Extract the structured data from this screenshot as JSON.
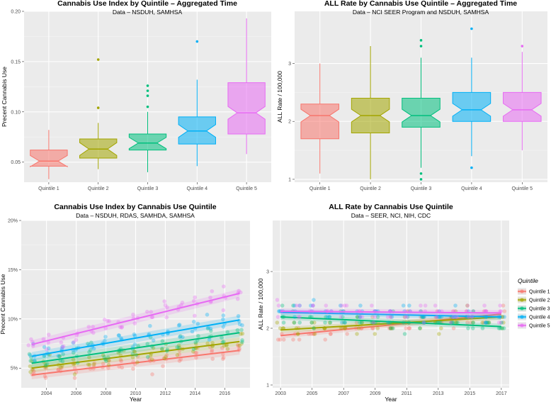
{
  "legend": {
    "title": "Quintile",
    "entries": [
      "Quintile 1",
      "Quintile 2",
      "Quintile 3",
      "Quintile 4",
      "Quintile 5"
    ],
    "colors": [
      "#F8766D",
      "#A3A500",
      "#00BF7D",
      "#00B0F6",
      "#E76BF3"
    ]
  },
  "chart_data": [
    {
      "type": "box",
      "title": "Cannabis Use Index by Quintile – Aggregated Time",
      "subtitle": "Data – NSDUH, SAMHSA",
      "xlabel": "",
      "ylabel": "Precent Cannabis Use",
      "categories": [
        "Quintile 1",
        "Quintile 2",
        "Quintile 3",
        "Quintile 4",
        "Quintile 5"
      ],
      "ylim": [
        0.03,
        0.2
      ],
      "yticks": [
        0.05,
        0.1,
        0.15,
        0.2
      ],
      "ytick_labels": [
        "0.05",
        "0.10",
        "0.15",
        "0.20"
      ],
      "boxes": [
        {
          "min": 0.033,
          "q1": 0.046,
          "median": 0.051,
          "q3": 0.062,
          "max": 0.082,
          "outliers": []
        },
        {
          "min": 0.043,
          "q1": 0.054,
          "median": 0.063,
          "q3": 0.073,
          "max": 0.089,
          "outliers": [
            0.104,
            0.152
          ]
        },
        {
          "min": 0.04,
          "q1": 0.062,
          "median": 0.069,
          "q3": 0.078,
          "max": 0.1,
          "outliers": [
            0.105,
            0.116,
            0.121,
            0.126
          ]
        },
        {
          "min": 0.046,
          "q1": 0.068,
          "median": 0.081,
          "q3": 0.095,
          "max": 0.132,
          "outliers": [
            0.17
          ]
        },
        {
          "min": 0.058,
          "q1": 0.078,
          "median": 0.099,
          "q3": 0.129,
          "max": 0.193,
          "outliers": []
        }
      ]
    },
    {
      "type": "box",
      "title": "ALL Rate by Cannabis Use Quintile – Aggregated Time",
      "subtitle": "Data – NCI SEER Program and NSDUH, SAMHSA",
      "xlabel": "",
      "ylabel": "ALL Rate / 100,000",
      "categories": [
        "Quintile 1",
        "Quintile 2",
        "Quintile 3",
        "Quintile 4",
        "Quintile 5"
      ],
      "ylim": [
        0.95,
        3.9
      ],
      "yticks": [
        1,
        2,
        3
      ],
      "ytick_labels": [
        "1",
        "2",
        "3"
      ],
      "boxes": [
        {
          "min": 1.1,
          "q1": 1.7,
          "median": 2.1,
          "q3": 2.3,
          "max": 3.0,
          "outliers": []
        },
        {
          "min": 1.0,
          "q1": 1.8,
          "median": 2.1,
          "q3": 2.4,
          "max": 3.3,
          "outliers": []
        },
        {
          "min": 1.2,
          "q1": 1.9,
          "median": 2.1,
          "q3": 2.4,
          "max": 3.1,
          "outliers": [
            1.0,
            1.1,
            3.3,
            3.4
          ]
        },
        {
          "min": 1.4,
          "q1": 2.0,
          "median": 2.2,
          "q3": 2.5,
          "max": 3.1,
          "outliers": [
            1.2,
            3.6
          ]
        },
        {
          "min": 1.5,
          "q1": 2.0,
          "median": 2.2,
          "q3": 2.5,
          "max": 3.2,
          "outliers": [
            3.3
          ]
        }
      ]
    },
    {
      "type": "scatter",
      "title": "Cannabis Use Index by Cannabis Use Quintile",
      "subtitle": "Data – NSDUH, RDAS, SAMHDA, SAMHSA",
      "xlabel": "Year",
      "ylabel": "Precent Cannabis Use",
      "xlim": [
        2002.3,
        2017.7
      ],
      "ylim": [
        0.03,
        0.2
      ],
      "xticks": [
        2004,
        2006,
        2008,
        2010,
        2012,
        2014,
        2016
      ],
      "xtick_labels": [
        "2004",
        "2006",
        "2008",
        "2010",
        "2012",
        "2014",
        "2016"
      ],
      "yticks": [
        0.05,
        0.1,
        0.15,
        0.2
      ],
      "ytick_labels": [
        "5%",
        "10%",
        "15%",
        "20%"
      ],
      "trend_lines": [
        {
          "name": "Quintile 1",
          "x": [
            2003,
            2017
          ],
          "y": [
            0.043,
            0.068
          ]
        },
        {
          "name": "Quintile 2",
          "x": [
            2003,
            2017
          ],
          "y": [
            0.05,
            0.077
          ]
        },
        {
          "name": "Quintile 3",
          "x": [
            2003,
            2017
          ],
          "y": [
            0.055,
            0.086
          ]
        },
        {
          "name": "Quintile 4",
          "x": [
            2003,
            2017
          ],
          "y": [
            0.062,
            0.099
          ]
        },
        {
          "name": "Quintile 5",
          "x": [
            2003,
            2017
          ],
          "y": [
            0.074,
            0.126
          ]
        }
      ]
    },
    {
      "type": "scatter",
      "title": "ALL Rate by Cannabis Use Quintile",
      "subtitle": "Data – SEER, NCI, NIH, CDC",
      "xlabel": "Year",
      "ylabel": "ALL Rate / 100,000",
      "xlim": [
        2002.5,
        2017.5
      ],
      "ylim": [
        0.95,
        3.9
      ],
      "xticks": [
        2003,
        2005,
        2007,
        2009,
        2011,
        2013,
        2015,
        2017
      ],
      "xtick_labels": [
        "2003",
        "2005",
        "2007",
        "2009",
        "2011",
        "2013",
        "2015",
        "2017"
      ],
      "yticks": [
        1,
        2,
        3
      ],
      "ytick_labels": [
        "1",
        "2",
        "3"
      ],
      "trend_lines": [
        {
          "name": "Quintile 1",
          "x": [
            2003,
            2017
          ],
          "y": [
            1.87,
            2.25
          ]
        },
        {
          "name": "Quintile 2",
          "x": [
            2003,
            2017
          ],
          "y": [
            1.97,
            2.2
          ]
        },
        {
          "name": "Quintile 3",
          "x": [
            2003,
            2017
          ],
          "y": [
            2.2,
            2.03
          ]
        },
        {
          "name": "Quintile 4",
          "x": [
            2003,
            2017
          ],
          "y": [
            2.28,
            2.2
          ]
        },
        {
          "name": "Quintile 5",
          "x": [
            2003,
            2017
          ],
          "y": [
            2.3,
            2.27
          ]
        }
      ]
    }
  ]
}
